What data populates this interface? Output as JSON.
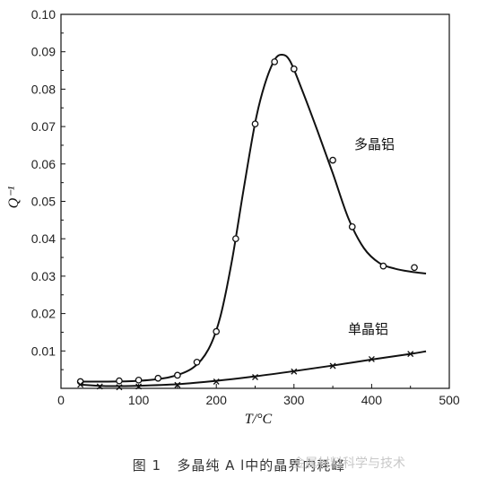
{
  "chart_data": {
    "type": "scatter",
    "xlabel": "T/°C",
    "ylabel": "Q⁻¹",
    "xlim": [
      0,
      500
    ],
    "ylim": [
      0,
      0.1
    ],
    "xticks": [
      0,
      100,
      200,
      300,
      400,
      500
    ],
    "yticks": [
      0.01,
      0.02,
      0.03,
      0.04,
      0.05,
      0.06,
      0.07,
      0.08,
      0.09,
      0.1
    ],
    "xtick_labels": [
      "0",
      "100",
      "200",
      "300",
      "400",
      "500"
    ],
    "ytick_labels": [
      "0.01",
      "0.02",
      "0.03",
      "0.04",
      "0.05",
      "0.06",
      "0.07",
      "0.08",
      "0.09",
      "0.10"
    ],
    "grid": false,
    "series": [
      {
        "name": "多晶铝",
        "marker": "circle",
        "points": [
          [
            25,
            0.0018
          ],
          [
            75,
            0.002
          ],
          [
            100,
            0.0022
          ],
          [
            125,
            0.0027
          ],
          [
            150,
            0.0035
          ],
          [
            175,
            0.007
          ],
          [
            200,
            0.0152
          ],
          [
            225,
            0.04
          ],
          [
            250,
            0.0707
          ],
          [
            275,
            0.0873
          ],
          [
            300,
            0.0854
          ],
          [
            350,
            0.061
          ],
          [
            375,
            0.0432
          ],
          [
            415,
            0.0327
          ],
          [
            455,
            0.0323
          ]
        ],
        "curve": [
          [
            25,
            0.0018
          ],
          [
            60,
            0.0018
          ],
          [
            100,
            0.002
          ],
          [
            140,
            0.003
          ],
          [
            170,
            0.0055
          ],
          [
            190,
            0.0105
          ],
          [
            205,
            0.019
          ],
          [
            220,
            0.034
          ],
          [
            235,
            0.053
          ],
          [
            250,
            0.071
          ],
          [
            262,
            0.081
          ],
          [
            275,
            0.0878
          ],
          [
            285,
            0.0892
          ],
          [
            295,
            0.0875
          ],
          [
            310,
            0.08
          ],
          [
            330,
            0.069
          ],
          [
            350,
            0.0575
          ],
          [
            370,
            0.0455
          ],
          [
            390,
            0.0375
          ],
          [
            410,
            0.0335
          ],
          [
            430,
            0.032
          ],
          [
            450,
            0.0312
          ],
          [
            470,
            0.0307
          ]
        ]
      },
      {
        "name": "单晶铝",
        "marker": "x",
        "points": [
          [
            25,
            0.001
          ],
          [
            50,
            0.0005
          ],
          [
            75,
            0.0003
          ],
          [
            100,
            0.0005
          ],
          [
            150,
            0.0009
          ],
          [
            200,
            0.0018
          ],
          [
            250,
            0.003
          ],
          [
            300,
            0.0045
          ],
          [
            350,
            0.006
          ],
          [
            400,
            0.0078
          ],
          [
            450,
            0.0092
          ]
        ],
        "curve": [
          [
            25,
            0.001
          ],
          [
            60,
            0.0006
          ],
          [
            100,
            0.0007
          ],
          [
            150,
            0.0011
          ],
          [
            200,
            0.002
          ],
          [
            250,
            0.0032
          ],
          [
            300,
            0.0046
          ],
          [
            350,
            0.0061
          ],
          [
            400,
            0.0077
          ],
          [
            450,
            0.0092
          ],
          [
            470,
            0.0099
          ]
        ]
      }
    ]
  },
  "caption": {
    "number": "图 1",
    "text": "多晶纯 A l中的晶界内耗峰"
  },
  "watermark": "金属材料科学与技术"
}
